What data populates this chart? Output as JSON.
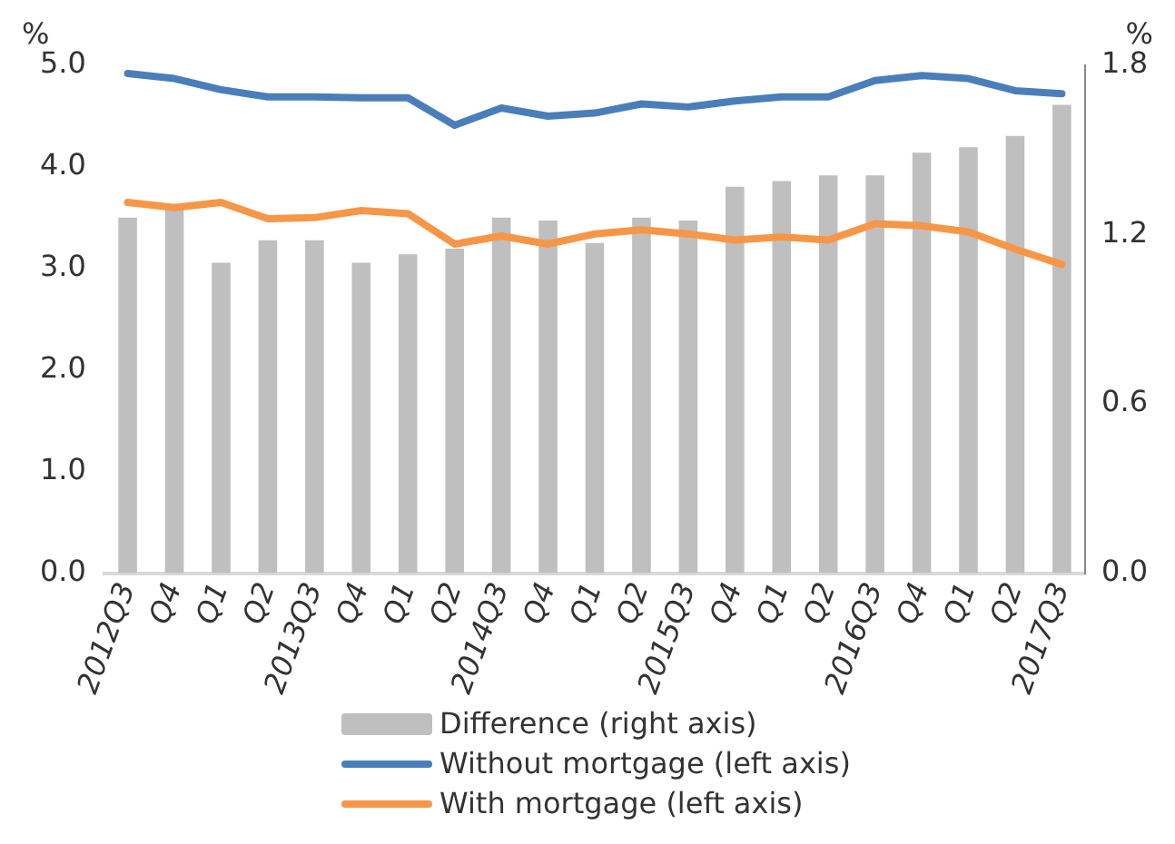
{
  "chart_data": {
    "type": "line",
    "ylabel": "%",
    "y2label": "%",
    "categories": [
      "2012Q3",
      "Q4",
      "Q1",
      "Q2",
      "2013Q3",
      "Q4",
      "Q1",
      "Q2",
      "2014Q3",
      "Q4",
      "Q1",
      "Q2",
      "2015Q3",
      "Q4",
      "Q1",
      "Q2",
      "2016Q3",
      "Q4",
      "Q1",
      "Q2",
      "2017Q3"
    ],
    "series": [
      {
        "name": "Difference (right axis)",
        "type": "bar",
        "axis": "y2",
        "color": "#bfbfbf",
        "values": [
          1.26,
          1.29,
          1.1,
          1.18,
          1.18,
          1.1,
          1.13,
          1.15,
          1.26,
          1.25,
          1.17,
          1.26,
          1.25,
          1.37,
          1.39,
          1.41,
          1.41,
          1.49,
          1.51,
          1.55,
          1.66
        ]
      },
      {
        "name": "Without mortgage (left axis)",
        "color": "#4a7ebb",
        "values": [
          4.92,
          4.87,
          4.76,
          4.69,
          4.69,
          4.68,
          4.68,
          4.41,
          4.58,
          4.5,
          4.53,
          4.62,
          4.59,
          4.65,
          4.69,
          4.69,
          4.85,
          4.9,
          4.87,
          4.75,
          4.72
        ]
      },
      {
        "name": "With mortgage (left axis)",
        "color": "#f79646",
        "values": [
          3.65,
          3.6,
          3.65,
          3.49,
          3.5,
          3.57,
          3.54,
          3.24,
          3.32,
          3.24,
          3.34,
          3.38,
          3.34,
          3.28,
          3.31,
          3.28,
          3.44,
          3.42,
          3.36,
          3.19,
          3.04
        ]
      }
    ],
    "ylim": [
      0,
      5
    ],
    "yticks": [
      {
        "value": 0,
        "label": "0.0"
      },
      {
        "value": 1,
        "label": "1.0"
      },
      {
        "value": 2,
        "label": "2.0"
      },
      {
        "value": 3,
        "label": "3.0"
      },
      {
        "value": 4,
        "label": "4.0"
      },
      {
        "value": 5,
        "label": "5.0"
      }
    ],
    "y2lim": [
      0,
      1.8
    ],
    "y2ticks": [
      {
        "value": 0,
        "label": "0.0"
      },
      {
        "value": 0.6,
        "label": "0.6"
      },
      {
        "value": 1.2,
        "label": "1.2"
      },
      {
        "value": 1.8,
        "label": "1.8"
      }
    ],
    "grid": false,
    "legend": "bottom",
    "marker": "none",
    "line_style": "solid"
  }
}
